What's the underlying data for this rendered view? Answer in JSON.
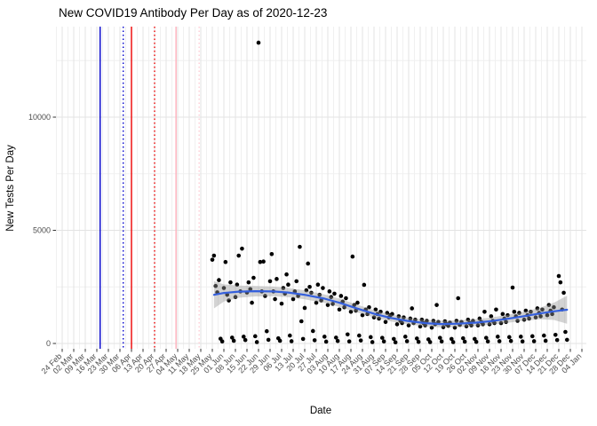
{
  "chart_data": {
    "type": "scatter",
    "title": "New COVID19 Antibody Per Day as of 2020-12-23",
    "xlabel": "Date",
    "ylabel": "New Tests Per Day",
    "grid": true,
    "legend": "none",
    "x_start_date": "2020-02-24",
    "x_end_date": "2021-01-04",
    "x_tick_labels": [
      "24 Feb",
      "02 Mar",
      "09 Mar",
      "16 Mar",
      "23 Mar",
      "30 Mar",
      "06 Apr",
      "13 Apr",
      "20 Apr",
      "27 Apr",
      "04 May",
      "11 May",
      "18 May",
      "25 May",
      "01 Jun",
      "08 Jun",
      "15 Jun",
      "22 Jun",
      "29 Jun",
      "06 Jul",
      "13 Jul",
      "20 Jul",
      "27 Jul",
      "03 Aug",
      "10 Aug",
      "17 Aug",
      "24 Aug",
      "31 Aug",
      "07 Sep",
      "14 Sep",
      "21 Sep",
      "28 Sep",
      "05 Oct",
      "12 Oct",
      "19 Oct",
      "26 Oct",
      "02 Nov",
      "09 Nov",
      "16 Nov",
      "23 Nov",
      "30 Nov",
      "07 Dec",
      "14 Dec",
      "21 Dec",
      "28 Dec",
      "04 Jan"
    ],
    "y_ticks": [
      0,
      5000,
      10000
    ],
    "y_tick_labels": [
      "0",
      "5000",
      "10000"
    ],
    "y_minor_ticks": [
      2500,
      7500,
      12500
    ],
    "ylim": [
      -240,
      14000
    ],
    "point_color": "#000000",
    "grid_major_color": "#e3e3e3",
    "grid_minor_color": "#f0f0f0",
    "vlines": [
      {
        "date": "2020-03-18",
        "color": "#0000CC",
        "style": "solid"
      },
      {
        "date": "2020-04-01",
        "color": "#0000CC",
        "style": "dotted"
      },
      {
        "date": "2020-04-06",
        "color": "#EE0000",
        "style": "solid"
      },
      {
        "date": "2020-04-20",
        "color": "#EE0000",
        "style": "dotted"
      },
      {
        "date": "2020-05-03",
        "color": "#FFB0BC",
        "style": "solid"
      },
      {
        "date": "2020-05-17",
        "color": "#FFCDD5",
        "style": "dotted"
      }
    ],
    "smooth": {
      "color": "#3560DD",
      "band_color_rgba": "rgba(150,150,150,0.42)",
      "knots": [
        [
          "2020-05-26",
          2150,
          600
        ],
        [
          "2020-06-01",
          2230,
          380
        ],
        [
          "2020-06-10",
          2290,
          270
        ],
        [
          "2020-06-20",
          2310,
          230
        ],
        [
          "2020-07-01",
          2300,
          215
        ],
        [
          "2020-07-10",
          2250,
          205
        ],
        [
          "2020-07-20",
          2150,
          200
        ],
        [
          "2020-08-01",
          1980,
          190
        ],
        [
          "2020-08-10",
          1800,
          180
        ],
        [
          "2020-08-20",
          1560,
          170
        ],
        [
          "2020-09-01",
          1290,
          160
        ],
        [
          "2020-09-10",
          1130,
          155
        ],
        [
          "2020-09-20",
          1000,
          150
        ],
        [
          "2020-10-01",
          900,
          150
        ],
        [
          "2020-10-10",
          860,
          150
        ],
        [
          "2020-10-20",
          870,
          150
        ],
        [
          "2020-11-01",
          920,
          155
        ],
        [
          "2020-11-10",
          990,
          160
        ],
        [
          "2020-11-20",
          1090,
          175
        ],
        [
          "2020-12-01",
          1220,
          205
        ],
        [
          "2020-12-10",
          1330,
          260
        ],
        [
          "2020-12-18",
          1420,
          380
        ],
        [
          "2020-12-26",
          1490,
          620
        ]
      ]
    },
    "points": [
      [
        "2020-05-25",
        3700
      ],
      [
        "2020-05-26",
        3880
      ],
      [
        "2020-05-27",
        2540
      ],
      [
        "2020-05-28",
        2260
      ],
      [
        "2020-05-29",
        2800
      ],
      [
        "2020-05-30",
        210
      ],
      [
        "2020-05-31",
        90
      ],
      [
        "2020-06-01",
        2450
      ],
      [
        "2020-06-02",
        3600
      ],
      [
        "2020-06-03",
        2150
      ],
      [
        "2020-06-04",
        1900
      ],
      [
        "2020-06-05",
        2700
      ],
      [
        "2020-06-06",
        260
      ],
      [
        "2020-06-07",
        120
      ],
      [
        "2020-06-08",
        2050
      ],
      [
        "2020-06-09",
        2600
      ],
      [
        "2020-06-10",
        3880
      ],
      [
        "2020-06-11",
        2300
      ],
      [
        "2020-06-12",
        4190
      ],
      [
        "2020-06-13",
        300
      ],
      [
        "2020-06-14",
        150
      ],
      [
        "2020-06-15",
        2250
      ],
      [
        "2020-06-16",
        2700
      ],
      [
        "2020-06-17",
        2400
      ],
      [
        "2020-06-18",
        1800
      ],
      [
        "2020-06-19",
        2900
      ],
      [
        "2020-06-20",
        320
      ],
      [
        "2020-06-21",
        60
      ],
      [
        "2020-06-22",
        13290
      ],
      [
        "2020-06-23",
        3600
      ],
      [
        "2020-06-24",
        2300
      ],
      [
        "2020-06-25",
        3620
      ],
      [
        "2020-06-26",
        2100
      ],
      [
        "2020-06-27",
        540
      ],
      [
        "2020-06-28",
        160
      ],
      [
        "2020-06-29",
        2750
      ],
      [
        "2020-06-30",
        3950
      ],
      [
        "2020-07-01",
        2300
      ],
      [
        "2020-07-02",
        1960
      ],
      [
        "2020-07-03",
        2850
      ],
      [
        "2020-07-04",
        230
      ],
      [
        "2020-07-05",
        120
      ],
      [
        "2020-07-06",
        1760
      ],
      [
        "2020-07-07",
        2450
      ],
      [
        "2020-07-08",
        2200
      ],
      [
        "2020-07-09",
        3050
      ],
      [
        "2020-07-10",
        2600
      ],
      [
        "2020-07-11",
        350
      ],
      [
        "2020-07-12",
        100
      ],
      [
        "2020-07-13",
        1960
      ],
      [
        "2020-07-14",
        2300
      ],
      [
        "2020-07-15",
        2750
      ],
      [
        "2020-07-16",
        2100
      ],
      [
        "2020-07-17",
        4270
      ],
      [
        "2020-07-18",
        980
      ],
      [
        "2020-07-19",
        200
      ],
      [
        "2020-07-20",
        1570
      ],
      [
        "2020-07-21",
        2350
      ],
      [
        "2020-07-22",
        3530
      ],
      [
        "2020-07-23",
        2500
      ],
      [
        "2020-07-24",
        2240
      ],
      [
        "2020-07-25",
        550
      ],
      [
        "2020-07-26",
        140
      ],
      [
        "2020-07-27",
        1800
      ],
      [
        "2020-07-28",
        2600
      ],
      [
        "2020-07-29",
        2150
      ],
      [
        "2020-07-30",
        1900
      ],
      [
        "2020-07-31",
        2450
      ],
      [
        "2020-08-01",
        300
      ],
      [
        "2020-08-02",
        80
      ],
      [
        "2020-08-03",
        1700
      ],
      [
        "2020-08-04",
        2300
      ],
      [
        "2020-08-05",
        2050
      ],
      [
        "2020-08-06",
        1750
      ],
      [
        "2020-08-07",
        2200
      ],
      [
        "2020-08-08",
        260
      ],
      [
        "2020-08-09",
        110
      ],
      [
        "2020-08-10",
        1500
      ],
      [
        "2020-08-11",
        2100
      ],
      [
        "2020-08-12",
        1850
      ],
      [
        "2020-08-13",
        1600
      ],
      [
        "2020-08-14",
        2000
      ],
      [
        "2020-08-15",
        400
      ],
      [
        "2020-08-16",
        90
      ],
      [
        "2020-08-17",
        1400
      ],
      [
        "2020-08-18",
        3840
      ],
      [
        "2020-08-19",
        1700
      ],
      [
        "2020-08-20",
        1450
      ],
      [
        "2020-08-21",
        1800
      ],
      [
        "2020-08-22",
        350
      ],
      [
        "2020-08-23",
        130
      ],
      [
        "2020-08-24",
        1250
      ],
      [
        "2020-08-25",
        2590
      ],
      [
        "2020-08-26",
        1500
      ],
      [
        "2020-08-27",
        1300
      ],
      [
        "2020-08-28",
        1600
      ],
      [
        "2020-08-29",
        280
      ],
      [
        "2020-08-30",
        60
      ],
      [
        "2020-08-31",
        1150
      ],
      [
        "2020-09-01",
        1500
      ],
      [
        "2020-09-02",
        1300
      ],
      [
        "2020-09-03",
        1100
      ],
      [
        "2020-09-04",
        1400
      ],
      [
        "2020-09-05",
        250
      ],
      [
        "2020-09-06",
        90
      ],
      [
        "2020-09-07",
        950
      ],
      [
        "2020-09-08",
        1350
      ],
      [
        "2020-09-09",
        1150
      ],
      [
        "2020-09-10",
        1250
      ],
      [
        "2020-09-11",
        1300
      ],
      [
        "2020-09-12",
        200
      ],
      [
        "2020-09-13",
        50
      ],
      [
        "2020-09-14",
        850
      ],
      [
        "2020-09-15",
        1200
      ],
      [
        "2020-09-16",
        1000
      ],
      [
        "2020-09-17",
        900
      ],
      [
        "2020-09-18",
        1150
      ],
      [
        "2020-09-19",
        300
      ],
      [
        "2020-09-20",
        100
      ],
      [
        "2020-09-21",
        800
      ],
      [
        "2020-09-22",
        1100
      ],
      [
        "2020-09-23",
        1550
      ],
      [
        "2020-09-24",
        900
      ],
      [
        "2020-09-25",
        1050
      ],
      [
        "2020-09-26",
        220
      ],
      [
        "2020-09-27",
        70
      ],
      [
        "2020-09-28",
        750
      ],
      [
        "2020-09-29",
        1050
      ],
      [
        "2020-09-30",
        900
      ],
      [
        "2020-10-01",
        800
      ],
      [
        "2020-10-02",
        1000
      ],
      [
        "2020-10-03",
        180
      ],
      [
        "2020-10-04",
        60
      ],
      [
        "2020-10-05",
        700
      ],
      [
        "2020-10-06",
        1000
      ],
      [
        "2020-10-07",
        850
      ],
      [
        "2020-10-08",
        1700
      ],
      [
        "2020-10-09",
        950
      ],
      [
        "2020-10-10",
        250
      ],
      [
        "2020-10-11",
        90
      ],
      [
        "2020-10-12",
        720
      ],
      [
        "2020-10-13",
        980
      ],
      [
        "2020-10-14",
        850
      ],
      [
        "2020-10-15",
        780
      ],
      [
        "2020-10-16",
        920
      ],
      [
        "2020-10-17",
        200
      ],
      [
        "2020-10-18",
        60
      ],
      [
        "2020-10-19",
        700
      ],
      [
        "2020-10-20",
        1000
      ],
      [
        "2020-10-21",
        2000
      ],
      [
        "2020-10-22",
        820
      ],
      [
        "2020-10-23",
        950
      ],
      [
        "2020-10-24",
        230
      ],
      [
        "2020-10-25",
        80
      ],
      [
        "2020-10-26",
        760
      ],
      [
        "2020-10-27",
        1050
      ],
      [
        "2020-10-28",
        900
      ],
      [
        "2020-10-29",
        800
      ],
      [
        "2020-10-30",
        1000
      ],
      [
        "2020-10-31",
        200
      ],
      [
        "2020-11-01",
        70
      ],
      [
        "2020-11-02",
        800
      ],
      [
        "2020-11-03",
        1100
      ],
      [
        "2020-11-04",
        950
      ],
      [
        "2020-11-05",
        850
      ],
      [
        "2020-11-06",
        1400
      ],
      [
        "2020-11-07",
        250
      ],
      [
        "2020-11-08",
        90
      ],
      [
        "2020-11-09",
        850
      ],
      [
        "2020-11-10",
        1200
      ],
      [
        "2020-11-11",
        1000
      ],
      [
        "2020-11-12",
        900
      ],
      [
        "2020-11-13",
        1500
      ],
      [
        "2020-11-14",
        300
      ],
      [
        "2020-11-15",
        100
      ],
      [
        "2020-11-16",
        900
      ],
      [
        "2020-11-17",
        1300
      ],
      [
        "2020-11-18",
        1100
      ],
      [
        "2020-11-19",
        950
      ],
      [
        "2020-11-20",
        1250
      ],
      [
        "2020-11-21",
        280
      ],
      [
        "2020-11-22",
        110
      ],
      [
        "2020-11-23",
        2470
      ],
      [
        "2020-11-24",
        1400
      ],
      [
        "2020-11-25",
        1200
      ],
      [
        "2020-11-26",
        1000
      ],
      [
        "2020-11-27",
        1350
      ],
      [
        "2020-11-28",
        300
      ],
      [
        "2020-11-29",
        90
      ],
      [
        "2020-11-30",
        1050
      ],
      [
        "2020-12-01",
        1450
      ],
      [
        "2020-12-02",
        1250
      ],
      [
        "2020-12-03",
        1100
      ],
      [
        "2020-12-04",
        1400
      ],
      [
        "2020-12-05",
        320
      ],
      [
        "2020-12-06",
        100
      ],
      [
        "2020-12-07",
        1150
      ],
      [
        "2020-12-08",
        1550
      ],
      [
        "2020-12-09",
        1350
      ],
      [
        "2020-12-10",
        1200
      ],
      [
        "2020-12-11",
        1500
      ],
      [
        "2020-12-12",
        350
      ],
      [
        "2020-12-13",
        120
      ],
      [
        "2020-12-14",
        1250
      ],
      [
        "2020-12-15",
        1700
      ],
      [
        "2020-12-16",
        1450
      ],
      [
        "2020-12-17",
        1300
      ],
      [
        "2020-12-18",
        1600
      ],
      [
        "2020-12-19",
        380
      ],
      [
        "2020-12-20",
        150
      ],
      [
        "2020-12-21",
        2980
      ],
      [
        "2020-12-22",
        2700
      ],
      [
        "2020-12-23",
        1500
      ],
      [
        "2020-12-24",
        2240
      ],
      [
        "2020-12-25",
        510
      ],
      [
        "2020-12-26",
        160
      ]
    ]
  }
}
